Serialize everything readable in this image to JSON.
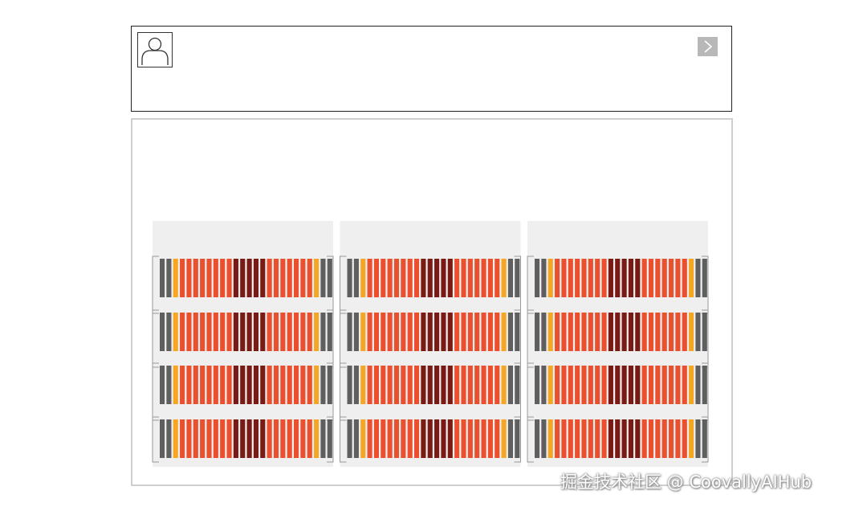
{
  "colors": {
    "panel_border_top": "#222222",
    "panel_border_bottom": "#cfcfcf",
    "rack_background": "#efefef",
    "connector_line": "#9a9a9a",
    "unit_gray": "#5f5f5f",
    "unit_amber": "#f5a623",
    "unit_red": "#ea4f2e",
    "unit_dark": "#7a1a14",
    "button_background": "#b8b8b8"
  },
  "icons": {
    "avatar": "user-silhouette-icon",
    "next": "chevron-right-icon"
  },
  "diagram": {
    "group_count": 3,
    "rows_per_group": 4,
    "row_pattern": [
      "gray",
      "gray",
      "amber",
      "red",
      "red",
      "red",
      "red",
      "red",
      "red",
      "red",
      "red",
      "dark",
      "dark",
      "dark",
      "dark",
      "dark",
      "red",
      "red",
      "red",
      "red",
      "red",
      "red",
      "red",
      "amber",
      "gray",
      "gray"
    ]
  },
  "watermark": "掘金技术社区 @ CoovallyAIHub"
}
